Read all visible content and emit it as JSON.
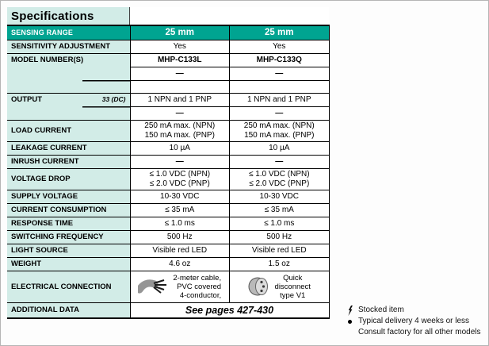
{
  "title": "Specifications",
  "colors": {
    "teal": "#00A491",
    "mint": "#D2ECE7"
  },
  "table": {
    "header": {
      "label": "SENSING RANGE",
      "values": [
        "25 mm",
        "25 mm"
      ]
    },
    "rows": [
      {
        "label": "SENSITIVITY ADJUSTMENT",
        "values": [
          {
            "lines": [
              "Yes"
            ]
          },
          {
            "lines": [
              "Yes"
            ]
          }
        ]
      },
      {
        "label": "MODEL NUMBER(S)",
        "bold": true,
        "values": [
          {
            "lines": [
              "MHP-C133L"
            ]
          },
          {
            "lines": [
              "MHP-C133Q"
            ]
          }
        ]
      },
      {
        "cont": true,
        "partial": false,
        "bold": true,
        "values": [
          {
            "lines": [
              "—"
            ]
          },
          {
            "lines": [
              "—"
            ]
          }
        ]
      },
      {
        "cont": true,
        "partial": true,
        "cls": "empty-row",
        "values": [
          {
            "lines": [
              ""
            ]
          },
          {
            "lines": [
              ""
            ]
          }
        ]
      },
      {
        "label": "OUTPUT",
        "note": "33 (DC)",
        "values": [
          {
            "lines": [
              "1 NPN and 1 PNP"
            ]
          },
          {
            "lines": [
              "1 NPN and 1 PNP"
            ]
          }
        ]
      },
      {
        "cont": true,
        "partial": true,
        "bold": true,
        "values": [
          {
            "lines": [
              "—"
            ]
          },
          {
            "lines": [
              "—"
            ]
          }
        ]
      },
      {
        "label": "LOAD CURRENT",
        "values": [
          {
            "lines": [
              "250 mA max. (NPN)",
              "150 mA max. (PNP)"
            ]
          },
          {
            "lines": [
              "250 mA max. (NPN)",
              "150 mA max. (PNP)"
            ]
          }
        ]
      },
      {
        "label": "LEAKAGE CURRENT",
        "values": [
          {
            "lines": [
              "10 µA"
            ]
          },
          {
            "lines": [
              "10 µA"
            ]
          }
        ]
      },
      {
        "label": "INRUSH CURRENT",
        "bold": true,
        "values": [
          {
            "lines": [
              "—"
            ]
          },
          {
            "lines": [
              "—"
            ]
          }
        ]
      },
      {
        "label": "VOLTAGE DROP",
        "values": [
          {
            "lines": [
              "≤ 1.0 VDC (NPN)",
              "≤ 2.0 VDC (PNP)"
            ]
          },
          {
            "lines": [
              "≤ 1.0 VDC (NPN)",
              "≤ 2.0 VDC (PNP)"
            ]
          }
        ]
      },
      {
        "label": "SUPPLY VOLTAGE",
        "values": [
          {
            "lines": [
              "10-30 VDC"
            ]
          },
          {
            "lines": [
              "10-30 VDC"
            ]
          }
        ]
      },
      {
        "label": "CURRENT CONSUMPTION",
        "values": [
          {
            "lines": [
              "≤ 35 mA"
            ]
          },
          {
            "lines": [
              "≤ 35 mA"
            ]
          }
        ]
      },
      {
        "label": "RESPONSE TIME",
        "values": [
          {
            "lines": [
              "≤ 1.0 ms"
            ]
          },
          {
            "lines": [
              "≤ 1.0 ms"
            ]
          }
        ]
      },
      {
        "label": "SWITCHING FREQUENCY",
        "values": [
          {
            "lines": [
              "500 Hz"
            ]
          },
          {
            "lines": [
              "500 Hz"
            ]
          }
        ]
      },
      {
        "label": "LIGHT SOURCE",
        "values": [
          {
            "lines": [
              "Visible red LED"
            ]
          },
          {
            "lines": [
              "Visible red LED"
            ]
          }
        ]
      },
      {
        "label": "WEIGHT",
        "values": [
          {
            "lines": [
              "4.6 oz"
            ]
          },
          {
            "lines": [
              "1.5 oz"
            ]
          }
        ]
      },
      {
        "label": "ELECTRICAL CONNECTION",
        "cls": "elec-row",
        "values": [
          {
            "icon": "cable-icon",
            "align": "right",
            "lines": [
              "2-meter cable,",
              "PVC covered",
              "4-conductor,"
            ]
          },
          {
            "icon": "connector-icon",
            "align": "center",
            "lines": [
              "Quick",
              "disconnect",
              "type V1"
            ]
          }
        ]
      },
      {
        "label": "ADDITIONAL DATA",
        "cls": "additional-row last",
        "span_value": "See pages 427-430"
      }
    ]
  },
  "legend": {
    "items": [
      {
        "symbol": "lightning-icon",
        "text": "Stocked item"
      },
      {
        "symbol": "bullet-icon",
        "text": "Typical delivery 4 weeks or less"
      },
      {
        "symbol": "",
        "text": "Consult factory for all other models"
      }
    ]
  }
}
